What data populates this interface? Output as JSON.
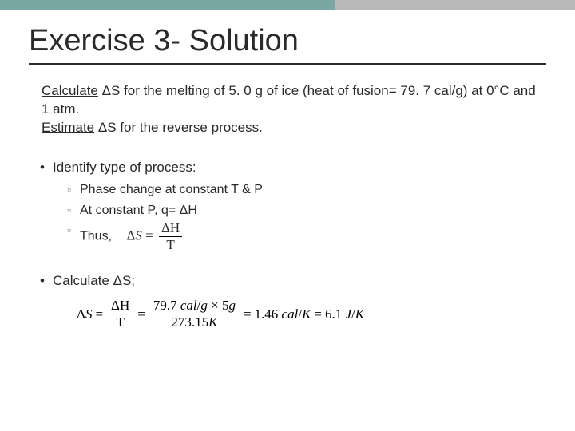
{
  "title": "Exercise 3- Solution",
  "intro": {
    "line1a": "Calculate",
    "line1b": " ΔS for the melting of 5. 0 g of ice (heat  of fusion= 79. 7 cal/g) at 0°C and 1 atm.",
    "line2a": "Estimate",
    "line2b": " ΔS for the reverse process."
  },
  "bullets": {
    "b1": "Identify type of process:",
    "sub": {
      "s1": "Phase change at constant T & P",
      "s2": "At constant P, q= ΔH",
      "s3": "Thus,"
    },
    "eq1": {
      "lhs": "Δ",
      "S": "S",
      "eq": " = ",
      "num": "ΔH",
      "den": "T"
    },
    "b2": "Calculate ΔS;",
    "eq2": {
      "lhs": "ΔS",
      "eq1": " = ",
      "f1num": "ΔH",
      "f1den": "T",
      "eq2": " = ",
      "f2num": "79.7 cal/g × 5g",
      "f2den": "273.15K",
      "eq3": " = ",
      "r1": "1.46 cal/K",
      "eq4": " = ",
      "r2": "6.1 J/K"
    }
  },
  "style": {
    "title_color": "#2a2a2a",
    "accent_border": "#2a2a2a",
    "band_left": "#79a8a4",
    "band_right": "#b9b9b9",
    "bullet_sub_marker": "#8a8a8a",
    "title_fontsize": 38,
    "body_fontsize": 17
  }
}
